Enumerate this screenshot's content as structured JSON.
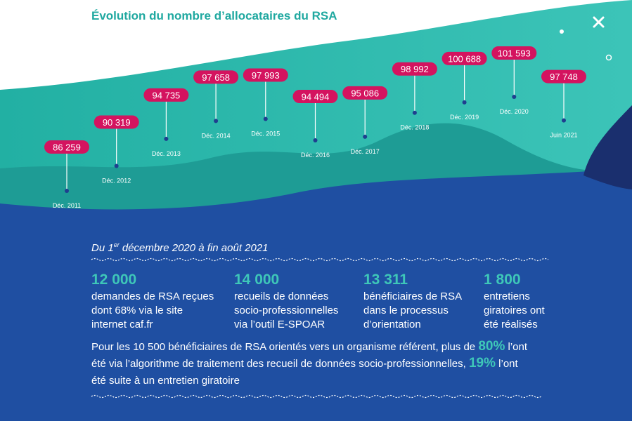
{
  "chart_data": {
    "type": "pin-timeline",
    "title": "Évolution du nombre d’allocataires du RSA",
    "categories": [
      "Déc. 2011",
      "Déc. 2012",
      "Déc. 2013",
      "Déc. 2014",
      "Déc. 2015",
      "Déc. 2016",
      "Déc. 2017",
      "Déc. 2018",
      "Déc. 2019",
      "Déc. 2020",
      "Juin 2021"
    ],
    "values": [
      86259,
      90319,
      94735,
      97658,
      97993,
      94494,
      95086,
      98992,
      100688,
      101593,
      97748
    ],
    "value_labels": [
      "86 259",
      "90 319",
      "94 735",
      "97 658",
      "97 993",
      "94 494",
      "95 086",
      "98 992",
      "100 688",
      "101 593",
      "97 748"
    ],
    "color": "#d4135f"
  },
  "period": [
    "Du 1",
    "er",
    " décembre 2020 à fin août 2021"
  ],
  "stats": [
    {
      "number": "12 000",
      "lines": [
        "demandes de RSA reçues",
        "dont 68% via le site",
        "internet caf.fr"
      ]
    },
    {
      "number": "14 000",
      "lines": [
        "recueils de données",
        "socio-professionnelles",
        "via l’outil E-SPOAR"
      ]
    },
    {
      "number": "13 311",
      "lines": [
        "bénéficiaires de RSA",
        "dans le processus",
        "d’orientation"
      ]
    },
    {
      "number": "1 800",
      "lines": [
        "entretiens",
        "giratoires ont",
        "été réalisés"
      ]
    }
  ],
  "paragraph": [
    [
      "Pour les 10 500 bénéficiaires de RSA orientés vers un organisme référent, plus de ",
      "80%",
      " l’ont"
    ],
    [
      "été via l’algorithme de traitement des recueil de données socio-professionnelles, ",
      "19%",
      " l’ont"
    ],
    [
      "été suite à un entretien giratoire"
    ]
  ]
}
